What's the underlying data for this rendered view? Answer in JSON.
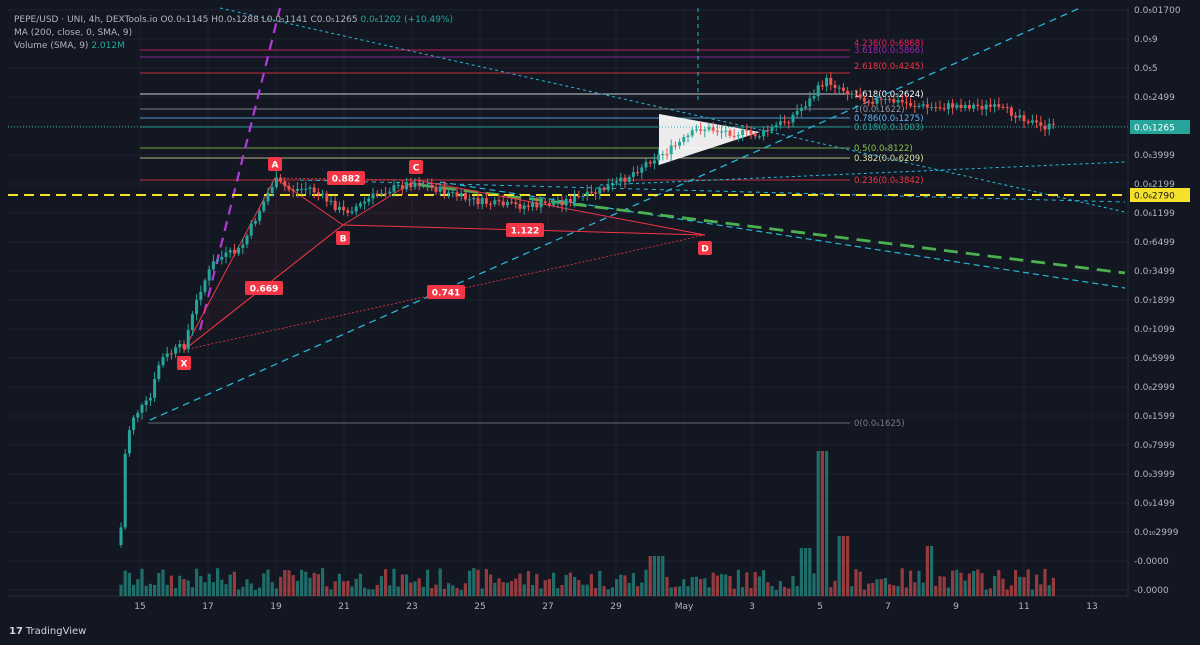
{
  "legend": {
    "symbol": "PEPE/USD · UNI, 4h, DEXTools.io",
    "o": "O0.0₅1145",
    "h": "H0.0₅1288",
    "l": "L0.0₅1141",
    "c": "C0.0₅1265",
    "change": "0.0₆1202 (+10.49%)",
    "ma_label": "MA (200, close, 0, SMA, 9)",
    "volume_label": "Volume (SMA, 9)",
    "volume_value": "2.012M"
  },
  "branding": {
    "logo_mark": "17",
    "logo_text": "TradingView"
  },
  "colors": {
    "background": "#131722",
    "up": "#26a69a",
    "down": "#ef5350",
    "grid": "#1e222d",
    "axis_text": "#b2b5be",
    "yellow": "#f5e12a",
    "green_dashed": "#4caf50",
    "cyan_dashed": "#29b6d6",
    "purple_dashed": "#b23ad9",
    "harmonic_red": "#f23645",
    "last_price_bg": "#26a69a"
  },
  "price_axis": {
    "labels": [
      "0.0₅01700",
      "0.0₅9",
      "0.0₅5",
      "0.0₅2499",
      "0.0₆6999",
      "0.0₆3999",
      "0.0₆2199",
      "0.0₆1199",
      "0.0₇6499",
      "0.0₇3499",
      "0.0₇1899",
      "0.0₇1099",
      "0.0₈5999",
      "0.0₈2999",
      "0.0₈1599",
      "0.0₉7999",
      "0.0₉3999",
      "0.0₉1499",
      "0.0₁₀2999",
      "-0.0000",
      "-0.0000"
    ],
    "current_price": "0.0₅1265",
    "yellow_level": "0.0₆2790"
  },
  "time_axis": {
    "labels": [
      "15",
      "17",
      "19",
      "21",
      "23",
      "25",
      "27",
      "29",
      "May",
      "3",
      "5",
      "7",
      "9",
      "11",
      "13"
    ]
  },
  "fib_levels": [
    {
      "label": "4.236(0.0₅6868)",
      "color": "#e91e63"
    },
    {
      "label": "3.618(0.0₅5866)",
      "color": "#9c27b0"
    },
    {
      "label": "2.618(0.0₅4245)",
      "color": "#f23645"
    },
    {
      "label": "1.618(0.0₅2624)",
      "color": "#ffffff"
    },
    {
      "label": "1(0.0₅1622)",
      "color": "#9598a1"
    },
    {
      "label": "0.786(0.0₅1275)",
      "color": "#64b5f6"
    },
    {
      "label": "0.618(0.0₅1003)",
      "color": "#26a69a"
    },
    {
      "label": "0.5(0.0₆8122)",
      "color": "#8bc34a"
    },
    {
      "label": "0.382(0.0₆6209)",
      "color": "#e0e0a0"
    },
    {
      "label": "0.236(0.0₆3842)",
      "color": "#f23645"
    },
    {
      "label": "0(0.0₆1625)",
      "color": "#787b86"
    }
  ],
  "harmonic": {
    "points": [
      "X",
      "A",
      "B",
      "C",
      "D"
    ],
    "ratios": [
      "0.882",
      "0.669",
      "1.122",
      "0.741"
    ]
  },
  "chart_data": {
    "type": "candlestick",
    "title": "PEPE/USD · UNI, 4h, DEXTools.io",
    "x_range": [
      "Apr 14",
      "May 13"
    ],
    "y_scale": "log",
    "candles_summary": "Parabolic rise from ~Apr 14 to Apr 19 (X→A), range consolidation Apr 19–May 1 forming harmonic XABCD, breakout May 1–5 to new highs, pullback and drift to May 12 last close 0.0₅1265",
    "last_close": "0.0₅1265",
    "change_pct": "+10.49%",
    "volume_spike": "May 5"
  }
}
